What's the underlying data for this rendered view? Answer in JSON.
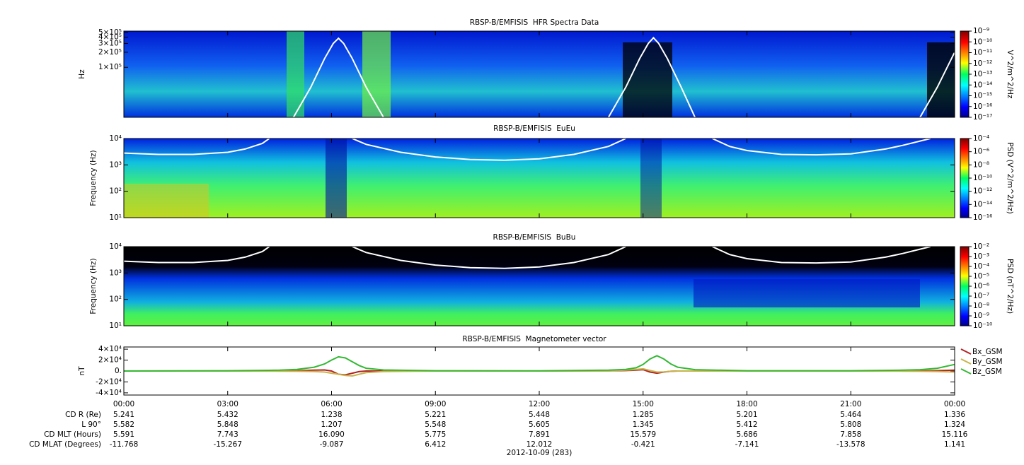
{
  "chart_data": [
    {
      "type": "heatmap",
      "title": "RBSP-B/EMFISIS  HFR Spectra Data",
      "ylabel": "Hz",
      "ylog": true,
      "ylim": [
        10000,
        530000
      ],
      "yticks": [
        {
          "value": 100000,
          "label": "1×10⁵"
        },
        {
          "value": 200000,
          "label": "2×10⁵"
        },
        {
          "value": 300000,
          "label": "3×10⁵"
        },
        {
          "value": 400000,
          "label": "4×10⁵"
        },
        {
          "value": 500000,
          "label": "5×10⁵"
        }
      ],
      "colorbar": {
        "label": "V^2/m^2/Hz",
        "lim": [
          1e-17,
          1e-09
        ],
        "ticks": [
          {
            "value": 1e-17,
            "label": "10⁻¹⁷"
          },
          {
            "value": 1e-16,
            "label": "10⁻¹⁶"
          },
          {
            "value": 1e-15,
            "label": "10⁻¹⁵"
          },
          {
            "value": 1e-14,
            "label": "10⁻¹⁴"
          },
          {
            "value": 1e-13,
            "label": "10⁻¹³"
          },
          {
            "value": 1e-12,
            "label": "10⁻¹²"
          },
          {
            "value": 1e-11,
            "label": "10⁻¹¹"
          },
          {
            "value": 1e-10,
            "label": "10⁻¹⁰"
          },
          {
            "value": 1e-09,
            "label": "10⁻⁹"
          }
        ]
      },
      "line": {
        "color": "#ffffff",
        "x": [
          4.9,
          5.4,
          5.8,
          6.05,
          6.2,
          6.35,
          6.6,
          7,
          7.5,
          11,
          14,
          14.5,
          14.9,
          15.15,
          15.3,
          15.45,
          15.7,
          16.1,
          16.5,
          20,
          23,
          23.5,
          24
        ],
        "values": [
          10000,
          40000,
          150000,
          300000,
          380000,
          300000,
          150000,
          40000,
          10000,
          null,
          10000,
          40000,
          150000,
          300000,
          390000,
          300000,
          150000,
          40000,
          10000,
          null,
          10000,
          40000,
          200000
        ]
      }
    },
    {
      "type": "heatmap",
      "title": "RBSP-B/EMFISIS  EuEu",
      "ylabel": "Frequency (Hz)",
      "ylog": true,
      "ylim": [
        10,
        10000
      ],
      "yticks": [
        {
          "value": 10,
          "label": "10¹"
        },
        {
          "value": 100,
          "label": "10²"
        },
        {
          "value": 1000,
          "label": "10³"
        },
        {
          "value": 10000,
          "label": "10⁴"
        }
      ],
      "colorbar": {
        "label": "PSD (V^2/m^2/Hz)",
        "lim": [
          1e-16,
          0.0001
        ],
        "ticks": [
          {
            "value": 1e-16,
            "label": "10⁻¹⁶"
          },
          {
            "value": 1e-14,
            "label": "10⁻¹⁴"
          },
          {
            "value": 1e-12,
            "label": "10⁻¹²"
          },
          {
            "value": 1e-10,
            "label": "10⁻¹⁰"
          },
          {
            "value": 1e-08,
            "label": "10⁻⁸"
          },
          {
            "value": 1e-06,
            "label": "10⁻⁶"
          },
          {
            "value": 0.0001,
            "label": "10⁻⁴"
          }
        ]
      },
      "line": {
        "color": "#ffffff",
        "x": [
          0,
          1,
          2,
          3,
          3.5,
          4,
          4.2,
          5.4,
          6.6,
          7,
          8,
          9,
          10,
          11,
          12,
          13,
          14,
          14.5,
          15.8,
          17,
          17.5,
          18,
          19,
          20,
          21,
          22,
          22.5,
          23,
          23.3
        ],
        "values": [
          2800,
          2500,
          2500,
          3000,
          4000,
          6500,
          10000,
          null,
          10000,
          6000,
          3000,
          2000,
          1600,
          1500,
          1700,
          2500,
          5000,
          10000,
          null,
          10000,
          5000,
          3500,
          2500,
          2400,
          2600,
          4000,
          5500,
          8000,
          10000
        ]
      }
    },
    {
      "type": "heatmap",
      "title": "RBSP-B/EMFISIS  BuBu",
      "ylabel": "Frequency (Hz)",
      "ylog": true,
      "ylim": [
        10,
        10000
      ],
      "yticks": [
        {
          "value": 10,
          "label": "10¹"
        },
        {
          "value": 100,
          "label": "10²"
        },
        {
          "value": 1000,
          "label": "10³"
        },
        {
          "value": 10000,
          "label": "10⁴"
        }
      ],
      "colorbar": {
        "label": "PSD (nT^2/Hz)",
        "lim": [
          1e-10,
          0.01
        ],
        "ticks": [
          {
            "value": 1e-10,
            "label": "10⁻¹⁰"
          },
          {
            "value": 1e-09,
            "label": "10⁻⁹"
          },
          {
            "value": 1e-08,
            "label": "10⁻⁸"
          },
          {
            "value": 1e-07,
            "label": "10⁻⁷"
          },
          {
            "value": 1e-06,
            "label": "10⁻⁶"
          },
          {
            "value": 1e-05,
            "label": "10⁻⁵"
          },
          {
            "value": 0.0001,
            "label": "10⁻⁴"
          },
          {
            "value": 0.001,
            "label": "10⁻³"
          },
          {
            "value": 0.01,
            "label": "10⁻²"
          }
        ]
      },
      "line": {
        "color": "#ffffff",
        "x": [
          0,
          1,
          2,
          3,
          3.5,
          4,
          4.2,
          5.4,
          6.6,
          7,
          8,
          9,
          10,
          11,
          12,
          13,
          14,
          14.5,
          15.8,
          17,
          17.5,
          18,
          19,
          20,
          21,
          22,
          22.5,
          23,
          23.3
        ],
        "values": [
          2800,
          2500,
          2500,
          3000,
          4000,
          6500,
          10000,
          null,
          10000,
          6000,
          3000,
          2000,
          1600,
          1500,
          1700,
          2500,
          5000,
          10000,
          null,
          10000,
          5000,
          3500,
          2500,
          2400,
          2600,
          4000,
          5500,
          8000,
          10000
        ]
      }
    },
    {
      "type": "line",
      "title": "RBSP-B/EMFISIS  Magnetometer vector",
      "ylabel": "nT",
      "ylim": [
        -44000,
        44000
      ],
      "yticks": [
        {
          "value": 40000,
          "label": "4×10⁴"
        },
        {
          "value": 20000,
          "label": "2×10⁴"
        },
        {
          "value": 0,
          "label": "0."
        },
        {
          "value": -20000,
          "label": "-2×10⁴"
        },
        {
          "value": -40000,
          "label": "-4×10⁴"
        }
      ],
      "xlim": [
        0,
        24
      ],
      "xticks": [
        {
          "value": 0,
          "label": "00:00"
        },
        {
          "value": 3,
          "label": "03:00"
        },
        {
          "value": 6,
          "label": "06:00"
        },
        {
          "value": 9,
          "label": "09:00"
        },
        {
          "value": 12,
          "label": "12:00"
        },
        {
          "value": 15,
          "label": "15:00"
        },
        {
          "value": 18,
          "label": "18:00"
        },
        {
          "value": 21,
          "label": "21:00"
        },
        {
          "value": 24,
          "label": "00:00"
        }
      ],
      "xlabel": "2012-10-09 (283)",
      "x": [
        0,
        3,
        4.5,
        5,
        5.5,
        5.8,
        6,
        6.2,
        6.4,
        6.6,
        6.8,
        7,
        7.5,
        9,
        12,
        14,
        14.5,
        14.8,
        15,
        15.2,
        15.4,
        15.6,
        15.8,
        16,
        16.5,
        18,
        21,
        22.5,
        23,
        23.5,
        24
      ],
      "series": [
        {
          "name": "Bx_GSM",
          "color": "#b22222",
          "values": [
            0,
            0,
            200,
            500,
            1500,
            2000,
            0,
            -6000,
            -7000,
            -4000,
            -1000,
            0,
            0,
            0,
            0,
            200,
            800,
            1500,
            2500,
            -2000,
            -4000,
            -2000,
            -500,
            0,
            0,
            0,
            0,
            0,
            300,
            600,
            1500
          ]
        },
        {
          "name": "By_GSM",
          "color": "#c8b44a",
          "values": [
            0,
            0,
            -200,
            -500,
            -1000,
            -2000,
            -4000,
            -6000,
            -8000,
            -9000,
            -6000,
            -3000,
            -1000,
            0,
            0,
            200,
            1500,
            3000,
            4000,
            1000,
            -2000,
            -1500,
            -500,
            0,
            0,
            0,
            0,
            -200,
            -500,
            -1000,
            -2000
          ]
        },
        {
          "name": "Bz_GSM",
          "color": "#33b833",
          "values": [
            0,
            500,
            1500,
            3000,
            7000,
            13000,
            20000,
            26000,
            24000,
            17000,
            10000,
            5000,
            2000,
            500,
            300,
            1500,
            3000,
            6000,
            12000,
            22000,
            28000,
            22000,
            13000,
            7000,
            2500,
            500,
            500,
            1500,
            2500,
            5000,
            12000
          ]
        }
      ]
    }
  ],
  "ephemeris": {
    "rows": [
      {
        "label": "CD R (Re)",
        "values": [
          "5.241",
          "5.432",
          "1.238",
          "5.221",
          "5.448",
          "1.285",
          "5.201",
          "5.464",
          "1.336"
        ]
      },
      {
        "label": "L 90°",
        "values": [
          "5.582",
          "5.848",
          "1.207",
          "5.548",
          "5.605",
          "1.345",
          "5.412",
          "5.808",
          "1.324"
        ]
      },
      {
        "label": "CD MLT (Hours)",
        "values": [
          "5.591",
          "7.743",
          "16.090",
          "5.775",
          "7.891",
          "15.579",
          "5.686",
          "7.858",
          "15.116"
        ]
      },
      {
        "label": "CD MLAT (Degrees)",
        "values": [
          "-11.768",
          "-15.267",
          "-9.087",
          "6.412",
          "12.012",
          "-0.421",
          "-7.141",
          "-13.578",
          "1.141"
        ]
      }
    ]
  }
}
